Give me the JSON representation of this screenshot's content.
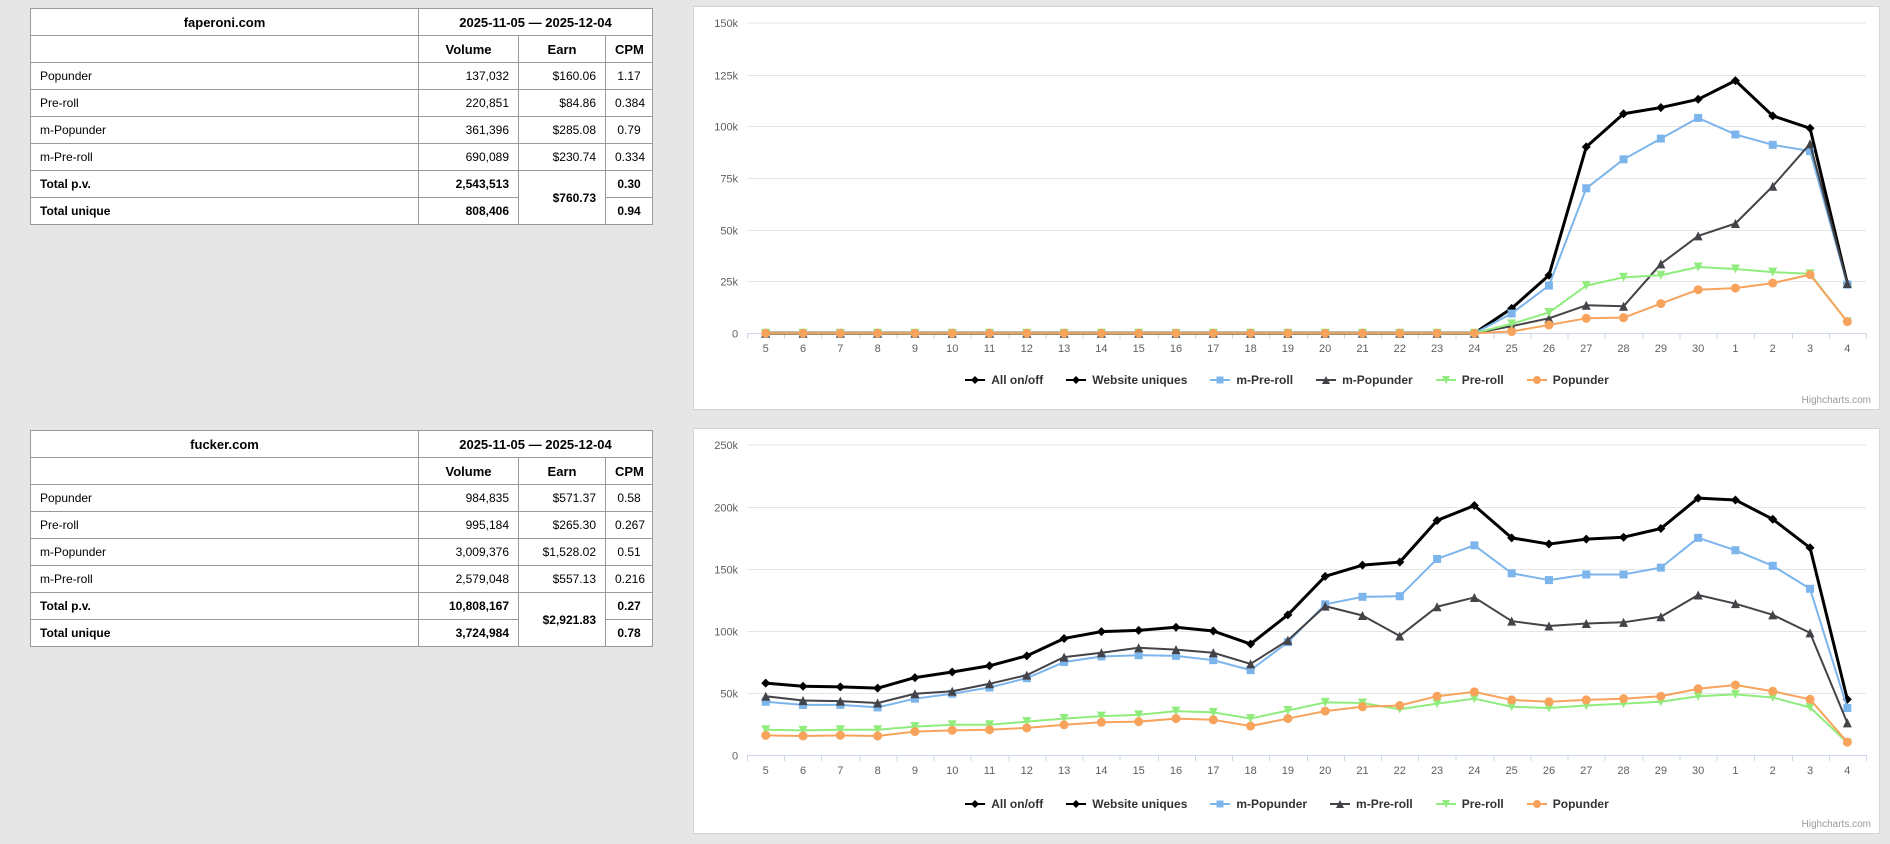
{
  "tables": [
    {
      "site": "faperoni.com",
      "date_range": "2025-11-05 — 2025-12-04",
      "columns": [
        "Volume",
        "Earn",
        "CPM"
      ],
      "rows": [
        {
          "label": "Popunder",
          "volume": "137,032",
          "earn": "$160.06",
          "cpm": "1.17"
        },
        {
          "label": "Pre-roll",
          "volume": "220,851",
          "earn": "$84.86",
          "cpm": "0.384"
        },
        {
          "label": "m-Popunder",
          "volume": "361,396",
          "earn": "$285.08",
          "cpm": "0.79"
        },
        {
          "label": "m-Pre-roll",
          "volume": "690,089",
          "earn": "$230.74",
          "cpm": "0.334"
        }
      ],
      "totals": {
        "pv_label": "Total p.v.",
        "pv_volume": "2,543,513",
        "pv_cpm": "0.30",
        "unique_label": "Total unique",
        "unique_volume": "808,406",
        "unique_cpm": "0.94",
        "earn": "$760.73"
      }
    },
    {
      "site": "fucker.com",
      "date_range": "2025-11-05 — 2025-12-04",
      "columns": [
        "Volume",
        "Earn",
        "CPM"
      ],
      "rows": [
        {
          "label": "Popunder",
          "volume": "984,835",
          "earn": "$571.37",
          "cpm": "0.58"
        },
        {
          "label": "Pre-roll",
          "volume": "995,184",
          "earn": "$265.30",
          "cpm": "0.267"
        },
        {
          "label": "m-Popunder",
          "volume": "3,009,376",
          "earn": "$1,528.02",
          "cpm": "0.51"
        },
        {
          "label": "m-Pre-roll",
          "volume": "2,579,048",
          "earn": "$557.13",
          "cpm": "0.216"
        }
      ],
      "totals": {
        "pv_label": "Total p.v.",
        "pv_volume": "10,808,167",
        "pv_cpm": "0.27",
        "unique_label": "Total unique",
        "unique_volume": "3,724,984",
        "unique_cpm": "0.78",
        "earn": "$2,921.83"
      }
    }
  ],
  "chart_data": [
    {
      "type": "line",
      "title": "",
      "xlabel": "",
      "ylabel": "",
      "grid": true,
      "legend_position": "bottom",
      "credit": "Highcharts.com",
      "ylim": [
        0,
        150000
      ],
      "yticks": [
        {
          "v": 0,
          "label": "0"
        },
        {
          "v": 25000,
          "label": "25k"
        },
        {
          "v": 50000,
          "label": "50k"
        },
        {
          "v": 75000,
          "label": "75k"
        },
        {
          "v": 100000,
          "label": "100k"
        },
        {
          "v": 125000,
          "label": "125k"
        },
        {
          "v": 150000,
          "label": "150k"
        }
      ],
      "categories": [
        "5",
        "6",
        "7",
        "8",
        "9",
        "10",
        "11",
        "12",
        "13",
        "14",
        "15",
        "16",
        "17",
        "18",
        "19",
        "20",
        "21",
        "22",
        "23",
        "24",
        "25",
        "26",
        "27",
        "28",
        "29",
        "30",
        "1",
        "2",
        "3",
        "4"
      ],
      "series": [
        {
          "name": "All on/off",
          "color": "#000000",
          "marker": "diamond",
          "line_width": 3,
          "values": null
        },
        {
          "name": "Website uniques",
          "color": "#000000",
          "marker": "diamond",
          "line_width": 3,
          "values": [
            0,
            0,
            0,
            0,
            0,
            0,
            0,
            0,
            0,
            0,
            0,
            0,
            0,
            0,
            0,
            0,
            0,
            0,
            0,
            0,
            12000,
            28000,
            90000,
            106000,
            109000,
            113000,
            122000,
            105000,
            99000,
            24000
          ]
        },
        {
          "name": "m-Pre-roll",
          "color": "#7cb5ec",
          "marker": "square",
          "line_width": 2,
          "values": [
            0,
            0,
            0,
            0,
            0,
            0,
            0,
            0,
            0,
            0,
            0,
            0,
            0,
            0,
            0,
            0,
            0,
            0,
            0,
            0,
            9500,
            23000,
            70000,
            84000,
            94000,
            104000,
            96000,
            91000,
            88000,
            23500
          ]
        },
        {
          "name": "m-Popunder",
          "color": "#434348",
          "marker": "triangle",
          "line_width": 2,
          "values": [
            0,
            0,
            0,
            0,
            0,
            0,
            0,
            0,
            0,
            0,
            0,
            0,
            0,
            0,
            0,
            0,
            0,
            0,
            0,
            0,
            3400,
            7200,
            13500,
            13000,
            33500,
            47000,
            53000,
            71000,
            91500,
            24000
          ]
        },
        {
          "name": "Pre-roll",
          "color": "#90ed7d",
          "marker": "triangle-down",
          "line_width": 2,
          "values": [
            0,
            0,
            0,
            0,
            0,
            0,
            0,
            0,
            0,
            0,
            0,
            0,
            0,
            0,
            0,
            0,
            0,
            0,
            0,
            0,
            4500,
            10000,
            23000,
            27000,
            28000,
            32000,
            31000,
            29500,
            28700,
            5500
          ]
        },
        {
          "name": "Popunder",
          "color": "#f7a35c",
          "marker": "circle",
          "line_width": 2,
          "values": [
            0,
            0,
            0,
            0,
            0,
            0,
            0,
            0,
            0,
            0,
            0,
            0,
            0,
            0,
            0,
            0,
            0,
            0,
            0,
            0,
            800,
            4000,
            7200,
            7500,
            14300,
            21000,
            21800,
            24200,
            28300,
            5600
          ]
        }
      ]
    },
    {
      "type": "line",
      "title": "",
      "xlabel": "",
      "ylabel": "",
      "grid": true,
      "legend_position": "bottom",
      "credit": "Highcharts.com",
      "ylim": [
        0,
        250000
      ],
      "yticks": [
        {
          "v": 0,
          "label": "0"
        },
        {
          "v": 50000,
          "label": "50k"
        },
        {
          "v": 100000,
          "label": "100k"
        },
        {
          "v": 150000,
          "label": "150k"
        },
        {
          "v": 200000,
          "label": "200k"
        },
        {
          "v": 250000,
          "label": "250k"
        }
      ],
      "categories": [
        "5",
        "6",
        "7",
        "8",
        "9",
        "10",
        "11",
        "12",
        "13",
        "14",
        "15",
        "16",
        "17",
        "18",
        "19",
        "20",
        "21",
        "22",
        "23",
        "24",
        "25",
        "26",
        "27",
        "28",
        "29",
        "30",
        "1",
        "2",
        "3",
        "4"
      ],
      "series": [
        {
          "name": "All on/off",
          "color": "#000000",
          "marker": "diamond",
          "line_width": 3,
          "values": null
        },
        {
          "name": "Website uniques",
          "color": "#000000",
          "marker": "diamond",
          "line_width": 3,
          "values": [
            58000,
            55500,
            55000,
            54000,
            62500,
            67000,
            72000,
            80000,
            94000,
            99500,
            100500,
            103000,
            100000,
            89500,
            113000,
            144000,
            153000,
            155500,
            189000,
            201000,
            175000,
            170000,
            174000,
            175500,
            182500,
            207000,
            205500,
            190000,
            167000,
            45000
          ]
        },
        {
          "name": "m-Popunder",
          "color": "#7cb5ec",
          "marker": "square",
          "line_width": 2,
          "values": [
            43000,
            40500,
            40500,
            38500,
            45500,
            49500,
            54500,
            62000,
            75000,
            79500,
            80500,
            80000,
            76500,
            68500,
            91000,
            121500,
            127500,
            128000,
            158000,
            169000,
            146500,
            141000,
            145500,
            145500,
            151000,
            175000,
            165000,
            152500,
            134000,
            38000
          ]
        },
        {
          "name": "m-Pre-roll",
          "color": "#434348",
          "marker": "triangle",
          "line_width": 2,
          "values": [
            47500,
            44000,
            43500,
            42000,
            49500,
            51500,
            57500,
            64500,
            79000,
            82500,
            86500,
            85000,
            82500,
            73500,
            92500,
            120000,
            112500,
            96000,
            119500,
            127000,
            108000,
            104000,
            106000,
            107000,
            111500,
            129000,
            122000,
            113000,
            98500,
            26000
          ]
        },
        {
          "name": "Pre-roll",
          "color": "#90ed7d",
          "marker": "triangle-down",
          "line_width": 2,
          "values": [
            20500,
            20000,
            20500,
            20500,
            23000,
            24500,
            24500,
            27000,
            29500,
            31500,
            32500,
            35500,
            34500,
            29500,
            36000,
            42500,
            42000,
            37000,
            41500,
            45500,
            39000,
            38000,
            40000,
            41500,
            43000,
            47500,
            49000,
            46500,
            38500,
            10000
          ]
        },
        {
          "name": "Popunder",
          "color": "#f7a35c",
          "marker": "circle",
          "line_width": 2,
          "values": [
            16000,
            15500,
            16000,
            15500,
            19000,
            20000,
            20500,
            22000,
            24500,
            26500,
            27000,
            29500,
            28500,
            23500,
            29500,
            35500,
            39000,
            40000,
            47500,
            51000,
            44500,
            43000,
            44500,
            45500,
            47500,
            53500,
            56500,
            51500,
            45000,
            10500
          ]
        }
      ]
    }
  ],
  "chart_style": {
    "grid_color": "#e6e6e6",
    "axis_color": "#ccd6eb",
    "label_color": "#606060",
    "legend_text_color": "#333333",
    "credit_color": "#999999"
  }
}
